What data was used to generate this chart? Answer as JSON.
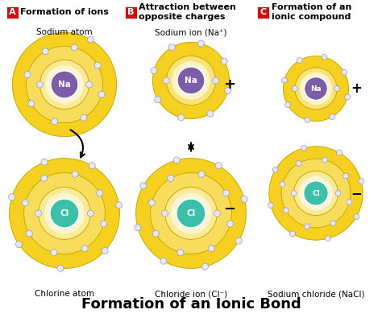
{
  "title": "Formation of an Ionic Bond",
  "title_fontsize": 13,
  "bg_color": "#ffffff",
  "header_A": "Formation of ions",
  "header_B": "Attraction between\nopposite charges",
  "header_C": "Formation of an\nionic compound",
  "header_label_bg": "#cc1111",
  "sub_label_Na_atom": "Sodium atom",
  "sub_label_Na_ion": "Sodium ion (Na⁺)",
  "sub_label_Cl_atom": "Chlorine atom",
  "sub_label_Cl_ion": "Chloride ion (Cl⁻)",
  "sub_label_NaCl": "Sodium chloride (NaCl)",
  "na_color": "#7b5ea7",
  "cl_color": "#3dbfaa",
  "orbit_color_outer": "#f5d020",
  "orbit_color_inner": "#fffbe0",
  "orbit_edge": "#c8aa00",
  "electron_color": "#e8e8f5",
  "electron_edge": "#9999bb",
  "text_color_dark": "#222222"
}
